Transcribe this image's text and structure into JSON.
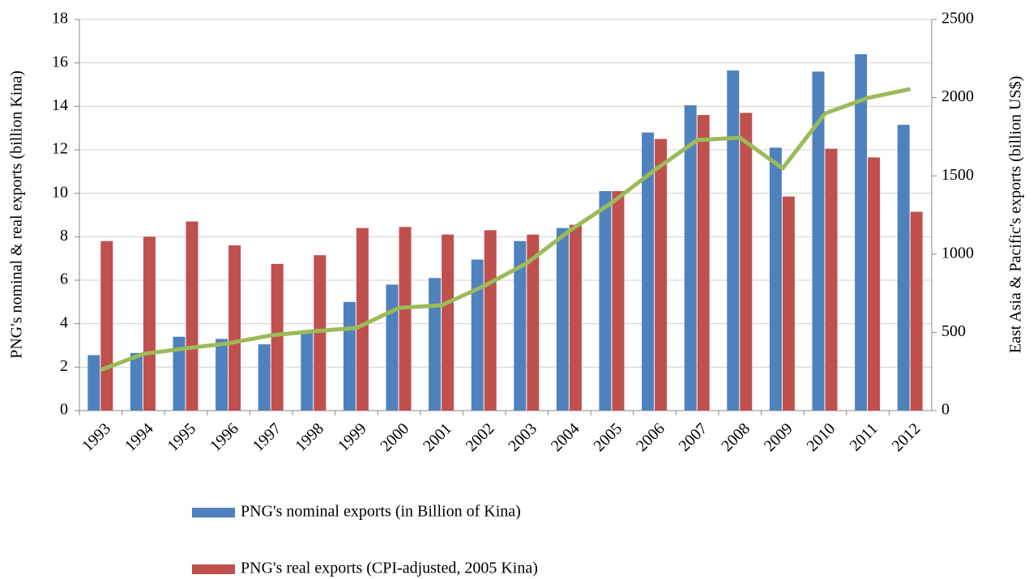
{
  "chart_data": {
    "type": "bar",
    "y_label": "PNG's nominal  & real exports  (billion Kina)",
    "y2_label": "East Asia & Pacific's exports  (billion US$)",
    "categories": [
      "1993",
      "1994",
      "1995",
      "1996",
      "1997",
      "1998",
      "1999",
      "2000",
      "2001",
      "2002",
      "2003",
      "2004",
      "2005",
      "2006",
      "2007",
      "2008",
      "2009",
      "2010",
      "2011",
      "2012"
    ],
    "series": [
      {
        "name": "PNG's nominal exports (in Billion of Kina)",
        "color": "#4f81bd",
        "values": [
          2.55,
          2.65,
          3.4,
          3.3,
          3.05,
          3.7,
          5.0,
          5.8,
          6.1,
          6.95,
          7.8,
          8.4,
          10.1,
          12.8,
          14.05,
          15.65,
          12.1,
          15.6,
          16.4,
          13.15
        ]
      },
      {
        "name": "PNG's real exports (CPI-adjusted, 2005 Kina)",
        "color": "#c0504d",
        "values": [
          7.8,
          8.0,
          8.7,
          7.6,
          6.75,
          7.15,
          8.4,
          8.45,
          8.1,
          8.3,
          8.1,
          8.55,
          10.1,
          12.5,
          13.6,
          13.7,
          9.85,
          12.05,
          11.65,
          9.15
        ]
      },
      {
        "type": "line",
        "axis": "y2",
        "color": "#9bbb59",
        "values": [
          259,
          362,
          398,
          430,
          481,
          507,
          528,
          657,
          673,
          797,
          942,
          1149,
          1330,
          1537,
          1729,
          1744,
          1548,
          1900,
          1998,
          2055
        ]
      }
    ],
    "ylim": [
      0,
      18
    ],
    "yticks": [
      0,
      2,
      4,
      6,
      8,
      10,
      12,
      14,
      16,
      18
    ],
    "y2lim": [
      0,
      2500
    ],
    "y2ticks": [
      0,
      500,
      1000,
      1500,
      2000,
      2500
    ],
    "grid": true,
    "legend": "bottom"
  }
}
